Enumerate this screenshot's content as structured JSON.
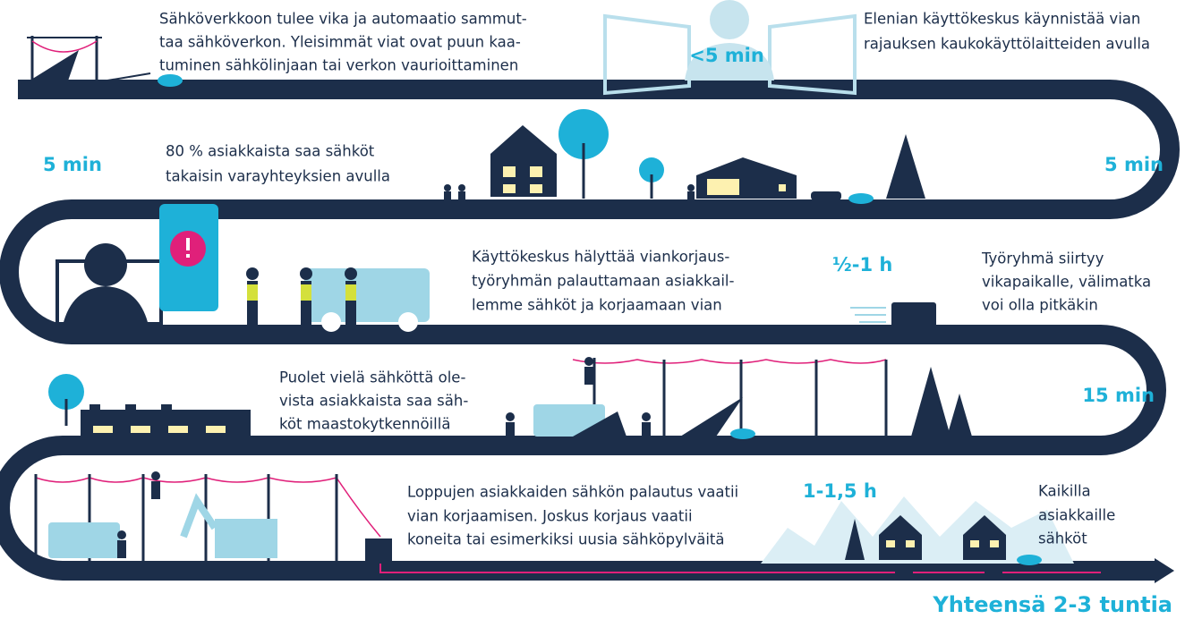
{
  "fault": {
    "lines": [
      "Sähköverkkoon tulee vika ja automaatio sammut-",
      "taa sähköverkon. Yleisimmät viat ovat puun kaa-",
      "tuminen sähkölinjaan tai verkon vaurioittaminen"
    ]
  },
  "remote": {
    "time": "<5 min",
    "lines": [
      "Elenian käyttökeskus käynnistää vian",
      "rajauksen kaukokäyttölaitteiden avulla"
    ]
  },
  "backup": {
    "time_left": "5 min",
    "lines": [
      "80 % asiakkaista saa sähköt",
      "takaisin varayhteyksien avulla"
    ],
    "time_right": "5 min"
  },
  "alert": {
    "lines": [
      "Käyttökeskus hälyttää viankorjaus-",
      "työryhmän palauttamaan asiakkail-",
      "lemme sähköt ja korjaamaan vian"
    ]
  },
  "transfer": {
    "time": "½-1 h",
    "lines": [
      "Työryhmä siirtyy",
      "vikapaikalle, välimatka",
      "voi olla pitkäkin"
    ]
  },
  "field": {
    "lines": [
      "Puolet vielä sähköttä ole-",
      "vista asiakkaista saa säh-",
      "köt maastokytkennöillä"
    ],
    "time": "15 min"
  },
  "repair": {
    "lines": [
      "Loppujen asiakkaiden sähkön palautus vaatii",
      "vian korjaamisen. Joskus korjaus vaatii",
      "koneita tai esimerkiksi uusia sähköpylväitä"
    ],
    "time": "1-1,5 h"
  },
  "done": {
    "lines": [
      "Kaikilla",
      "asiakkaille",
      "sähköt"
    ]
  },
  "total": "Yhteensä 2-3 tuntia"
}
